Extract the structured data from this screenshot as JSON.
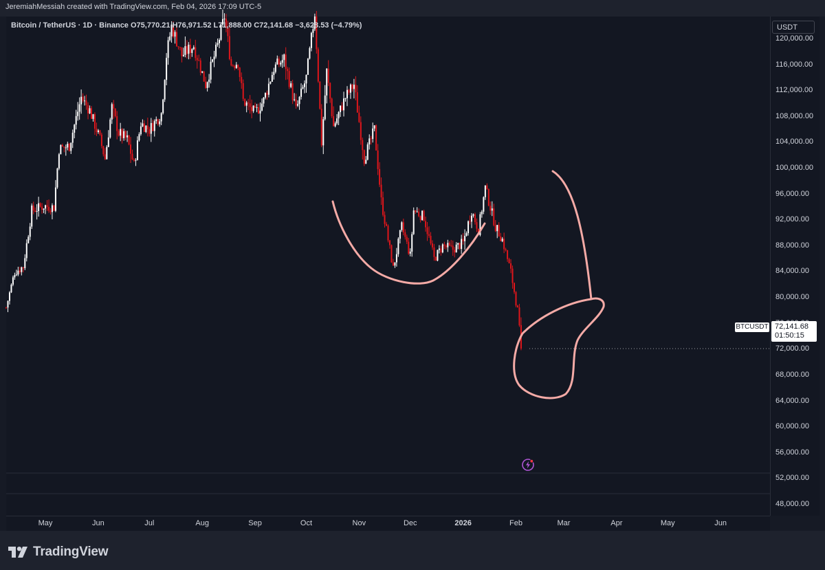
{
  "header": {
    "caption": "JeremiahMessiah created with TradingView.com, Feb 04, 2026 17:09 UTC-5"
  },
  "legend": {
    "symbol": "Bitcoin / TetherUS · 1D · Binance",
    "open": "O75,770.21",
    "high": "H76,971.52",
    "low": "L71,888.00",
    "close": "C72,141.68",
    "change": "−3,628.53 (−4.79%)"
  },
  "currency_button": "USDT",
  "last_price": {
    "symbol": "BTCUSDT",
    "price": "72,141.68",
    "countdown": "01:50:15"
  },
  "footer": {
    "brand": "TradingView"
  },
  "colors": {
    "up": "#ffffff",
    "down": "#e0161b",
    "drawing": "#f4aaa6",
    "background": "#131722"
  },
  "icons": [
    "tradingview-logo-icon",
    "flash-news-icon"
  ],
  "chart_data": {
    "type": "candlestick",
    "symbol": "BTCUSDT",
    "interval": "1D",
    "y_axis": {
      "ticks": [
        "120,000.00",
        "116,000.00",
        "112,000.00",
        "108,000.00",
        "104,000.00",
        "100,000.00",
        "96,000.00",
        "92,000.00",
        "88,000.00",
        "84,000.00",
        "80,000.00",
        "76,000.00",
        "72,000.00",
        "68,000.00",
        "64,000.00",
        "60,000.00",
        "56,000.00",
        "52,000.00",
        "48,000.00"
      ],
      "tick_values": [
        120000,
        116000,
        112000,
        108000,
        104000,
        100000,
        96000,
        92000,
        88000,
        84000,
        80000,
        76000,
        72000,
        68000,
        64000,
        60000,
        56000,
        52000,
        48000
      ],
      "range": [
        46300,
        123500
      ]
    },
    "x_axis": {
      "ticks": [
        {
          "label": "May",
          "date": "2025-05-01"
        },
        {
          "label": "Jun",
          "date": "2025-06-01"
        },
        {
          "label": "Jul",
          "date": "2025-07-01"
        },
        {
          "label": "Aug",
          "date": "2025-08-01"
        },
        {
          "label": "Sep",
          "date": "2025-09-01"
        },
        {
          "label": "Oct",
          "date": "2025-10-01"
        },
        {
          "label": "Nov",
          "date": "2025-11-01"
        },
        {
          "label": "Dec",
          "date": "2025-12-01"
        },
        {
          "label": "2026",
          "date": "2026-01-01",
          "bold": true
        },
        {
          "label": "Feb",
          "date": "2026-02-01"
        },
        {
          "label": "Mar",
          "date": "2026-03-01"
        },
        {
          "label": "Apr",
          "date": "2026-04-01"
        },
        {
          "label": "May",
          "date": "2026-05-01"
        },
        {
          "label": "Jun",
          "date": "2026-06-01"
        }
      ],
      "range": [
        "2025-04-08",
        "2026-06-30"
      ]
    },
    "price_path": [
      [
        "2025-04-08",
        78500
      ],
      [
        "2025-04-13",
        84000
      ],
      [
        "2025-04-18",
        84800
      ],
      [
        "2025-04-23",
        93500
      ],
      [
        "2025-04-30",
        94200
      ],
      [
        "2025-05-06",
        94000
      ],
      [
        "2025-05-09",
        103000
      ],
      [
        "2025-05-15",
        103500
      ],
      [
        "2025-05-22",
        111000
      ],
      [
        "2025-05-27",
        109000
      ],
      [
        "2025-06-02",
        104500
      ],
      [
        "2025-06-05",
        101500
      ],
      [
        "2025-06-09",
        109500
      ],
      [
        "2025-06-13",
        105500
      ],
      [
        "2025-06-18",
        104500
      ],
      [
        "2025-06-22",
        100500
      ],
      [
        "2025-06-26",
        107000
      ],
      [
        "2025-07-01",
        106000
      ],
      [
        "2025-07-08",
        108500
      ],
      [
        "2025-07-11",
        117500
      ],
      [
        "2025-07-14",
        122000
      ],
      [
        "2025-07-20",
        117500
      ],
      [
        "2025-07-27",
        119000
      ],
      [
        "2025-08-03",
        113000
      ],
      [
        "2025-08-10",
        119000
      ],
      [
        "2025-08-14",
        123500
      ],
      [
        "2025-08-18",
        116000
      ],
      [
        "2025-08-22",
        116500
      ],
      [
        "2025-08-25",
        110500
      ],
      [
        "2025-09-01",
        108500
      ],
      [
        "2025-09-06",
        110500
      ],
      [
        "2025-09-12",
        115500
      ],
      [
        "2025-09-18",
        117000
      ],
      [
        "2025-09-25",
        109000
      ],
      [
        "2025-10-01",
        114000
      ],
      [
        "2025-10-06",
        124000
      ],
      [
        "2025-10-10",
        104000
      ],
      [
        "2025-10-13",
        115000
      ],
      [
        "2025-10-17",
        106500
      ],
      [
        "2025-10-24",
        111000
      ],
      [
        "2025-10-29",
        113000
      ],
      [
        "2025-11-04",
        101500
      ],
      [
        "2025-11-10",
        106000
      ],
      [
        "2025-11-14",
        95000
      ],
      [
        "2025-11-21",
        84500
      ],
      [
        "2025-11-26",
        91000
      ],
      [
        "2025-12-01",
        86500
      ],
      [
        "2025-12-03",
        93500
      ],
      [
        "2025-12-09",
        92500
      ],
      [
        "2025-12-15",
        86000
      ],
      [
        "2025-12-20",
        88000
      ],
      [
        "2025-12-26",
        87500
      ],
      [
        "2026-01-01",
        88500
      ],
      [
        "2026-01-06",
        93500
      ],
      [
        "2026-01-10",
        90500
      ],
      [
        "2026-01-14",
        97000
      ],
      [
        "2026-01-20",
        91000
      ],
      [
        "2026-01-24",
        89000
      ],
      [
        "2026-01-29",
        84000
      ],
      [
        "2026-02-02",
        78000
      ],
      [
        "2026-02-04",
        72141.68
      ]
    ],
    "last_candle": {
      "date": "2026-02-04",
      "open": 75770.21,
      "high": 76971.52,
      "low": 71888.0,
      "close": 72141.68
    }
  }
}
